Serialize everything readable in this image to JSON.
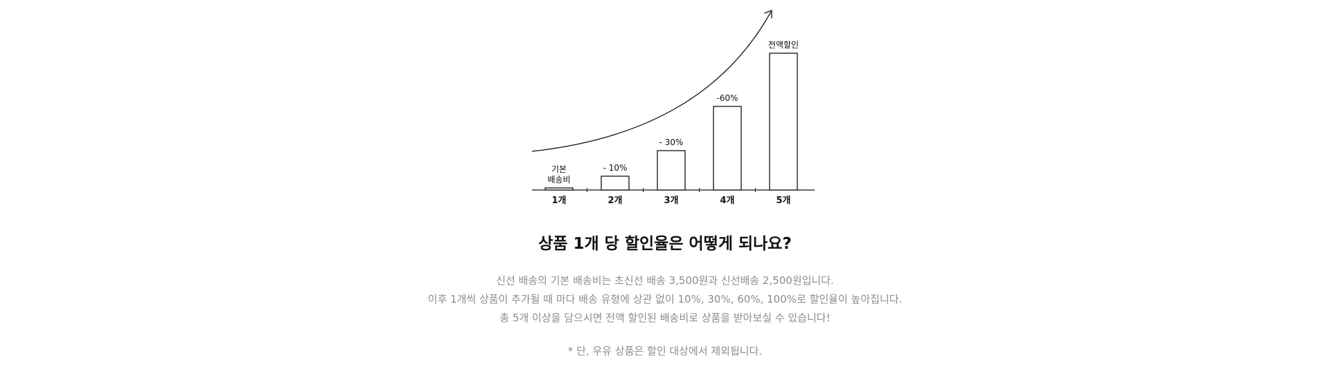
{
  "chart_data": {
    "type": "bar",
    "categories": [
      "1개",
      "2개",
      "3개",
      "4개",
      "5개"
    ],
    "values": [
      3,
      20,
      57,
      121,
      198
    ],
    "bar_labels": [
      [
        "기본",
        "배송비"
      ],
      [
        "- 10%"
      ],
      [
        "- 30%"
      ],
      [
        "-60%"
      ],
      [
        "전액할인"
      ]
    ],
    "title": "",
    "xlabel": "",
    "ylabel": "",
    "ylim": [
      0,
      250
    ],
    "grid": false,
    "legend": "none",
    "trend_arrow": true
  },
  "heading": "상품 1개 당 할인율은 어떻게 되나요?",
  "description": [
    "신선 배송의 기본 배송비는 초신선 배송 3,500원과 신선배송 2,500원입니다.",
    "이후 1개씩 상품이 추가될 때 마다 배송 유형에 상관 없이 10%, 30%, 60%, 100%로 할인율이 높아집니다.",
    "총 5개 이상을 담으시면 전액 할인된 배송비로 상품을 받아보실 수 있습니다!"
  ],
  "footnote": "* 단, 우유 상품은 할인 대상에서 제외됩니다.",
  "colors": {
    "heading": "#111111",
    "body": "#8c8c8c",
    "ink": "#111111"
  }
}
